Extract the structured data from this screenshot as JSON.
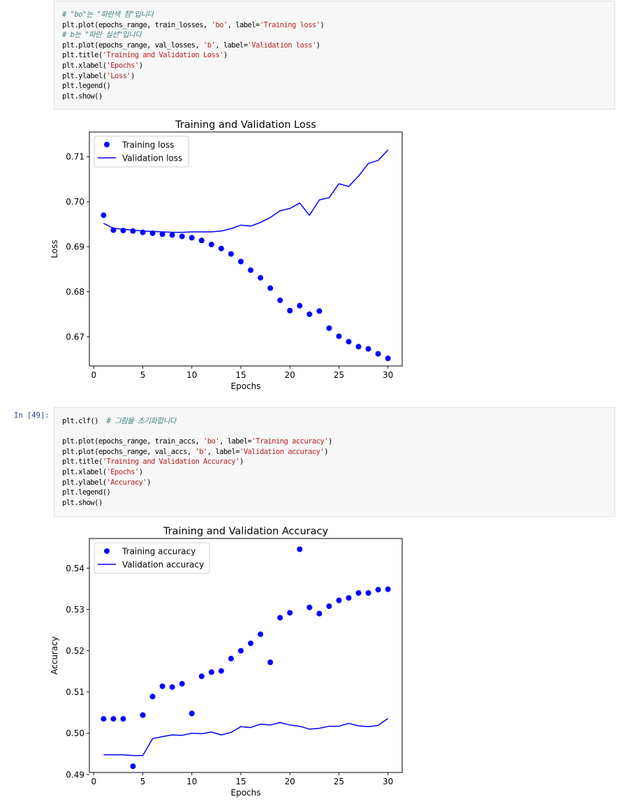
{
  "cells": [
    {
      "prompt": "",
      "code_lines": [
        [
          {
            "t": "# \"bo\"는 \"파란색 점\"입니다",
            "c": "cm"
          }
        ],
        [
          {
            "t": "plt.plot(epochs_range, train_losses, "
          },
          {
            "t": "'bo'",
            "c": "st"
          },
          {
            "t": ", label="
          },
          {
            "t": "'Training loss'",
            "c": "st"
          },
          {
            "t": ")"
          }
        ],
        [
          {
            "t": "# b는 \"파란 실선\"입니다",
            "c": "cm"
          }
        ],
        [
          {
            "t": "plt.plot(epochs_range, val_losses, "
          },
          {
            "t": "'b'",
            "c": "st"
          },
          {
            "t": ", label="
          },
          {
            "t": "'Validation loss'",
            "c": "st"
          },
          {
            "t": ")"
          }
        ],
        [
          {
            "t": "plt.title("
          },
          {
            "t": "'Training and Validation Loss'",
            "c": "st"
          },
          {
            "t": ")"
          }
        ],
        [
          {
            "t": "plt.xlabel("
          },
          {
            "t": "'Epochs'",
            "c": "st"
          },
          {
            "t": ")"
          }
        ],
        [
          {
            "t": "plt.ylabel("
          },
          {
            "t": "'Loss'",
            "c": "st"
          },
          {
            "t": ")"
          }
        ],
        [
          {
            "t": "plt.legend()"
          }
        ],
        [
          {
            "t": "plt.show()"
          }
        ]
      ]
    },
    {
      "prompt": "In [49]:",
      "code_lines": [
        [
          {
            "t": "plt.clf()  "
          },
          {
            "t": "# 그림을 초기화합니다",
            "c": "cm"
          }
        ],
        [
          {
            "t": ""
          }
        ],
        [
          {
            "t": "plt.plot(epochs_range, train_accs, "
          },
          {
            "t": "'bo'",
            "c": "st"
          },
          {
            "t": ", label="
          },
          {
            "t": "'Training accuracy'",
            "c": "st"
          },
          {
            "t": ")"
          }
        ],
        [
          {
            "t": "plt.plot(epochs_range, val_accs, "
          },
          {
            "t": "'b'",
            "c": "st"
          },
          {
            "t": ", label="
          },
          {
            "t": "'Validation accuracy'",
            "c": "st"
          },
          {
            "t": ")"
          }
        ],
        [
          {
            "t": "plt.title("
          },
          {
            "t": "'Training and Validation Accuracy'",
            "c": "st"
          },
          {
            "t": ")"
          }
        ],
        [
          {
            "t": "plt.xlabel("
          },
          {
            "t": "'Epochs'",
            "c": "st"
          },
          {
            "t": ")"
          }
        ],
        [
          {
            "t": "plt.ylabel("
          },
          {
            "t": "'Accuracy'",
            "c": "st"
          },
          {
            "t": ")"
          }
        ],
        [
          {
            "t": "plt.legend()"
          }
        ],
        [
          {
            "t": "plt.show()"
          }
        ]
      ]
    }
  ],
  "colors": {
    "series": "#0000ff",
    "comment": "#408080",
    "string": "#ba2121"
  },
  "chart_data": [
    {
      "type": "line",
      "title": "Training and Validation Loss",
      "xlabel": "Epochs",
      "ylabel": "Loss",
      "xlim": [
        -0.45,
        31.45
      ],
      "ylim": [
        0.6635,
        0.7155
      ],
      "xticks": [
        0,
        5,
        10,
        15,
        20,
        25,
        30
      ],
      "yticks": [
        0.67,
        0.68,
        0.69,
        0.7,
        0.71
      ],
      "ytick_labels": [
        "0.67",
        "0.68",
        "0.69",
        "0.70",
        "0.71"
      ],
      "legend": "top-left",
      "grid": false,
      "x": [
        1,
        2,
        3,
        4,
        5,
        6,
        7,
        8,
        9,
        10,
        11,
        12,
        13,
        14,
        15,
        16,
        17,
        18,
        19,
        20,
        21,
        22,
        23,
        24,
        25,
        26,
        27,
        28,
        29,
        30
      ],
      "series": [
        {
          "name": "Training loss",
          "style": "points",
          "values": [
            0.697,
            0.6937,
            0.6936,
            0.6935,
            0.6932,
            0.693,
            0.6928,
            0.6926,
            0.6923,
            0.692,
            0.6914,
            0.6905,
            0.6896,
            0.6884,
            0.6867,
            0.6848,
            0.6831,
            0.6808,
            0.6781,
            0.6758,
            0.6769,
            0.675,
            0.6757,
            0.6719,
            0.6701,
            0.6689,
            0.6678,
            0.6673,
            0.6662,
            0.6652
          ]
        },
        {
          "name": "Validation loss",
          "style": "line",
          "values": [
            0.6952,
            0.6941,
            0.6939,
            0.6937,
            0.6935,
            0.6934,
            0.6933,
            0.6932,
            0.6932,
            0.6933,
            0.6933,
            0.6933,
            0.6935,
            0.694,
            0.6948,
            0.6946,
            0.6954,
            0.6965,
            0.698,
            0.6985,
            0.6997,
            0.697,
            0.7004,
            0.7009,
            0.704,
            0.7034,
            0.7057,
            0.7085,
            0.7092,
            0.7115
          ]
        }
      ]
    },
    {
      "type": "line",
      "title": "Training and Validation Accuracy",
      "xlabel": "Epochs",
      "ylabel": "Accuracy",
      "xlim": [
        -0.45,
        31.45
      ],
      "ylim": [
        0.4905,
        0.5472
      ],
      "xticks": [
        0,
        5,
        10,
        15,
        20,
        25,
        30
      ],
      "yticks": [
        0.49,
        0.5,
        0.51,
        0.52,
        0.53,
        0.54
      ],
      "ytick_labels": [
        "0.49",
        "0.50",
        "0.51",
        "0.52",
        "0.53",
        "0.54"
      ],
      "legend": "top-left",
      "grid": false,
      "x": [
        1,
        2,
        3,
        4,
        5,
        6,
        7,
        8,
        9,
        10,
        11,
        12,
        13,
        14,
        15,
        16,
        17,
        18,
        19,
        20,
        21,
        22,
        23,
        24,
        25,
        26,
        27,
        28,
        29,
        30
      ],
      "series": [
        {
          "name": "Training accuracy",
          "style": "points",
          "values": [
            0.5035,
            0.5035,
            0.5035,
            0.492,
            0.5044,
            0.5089,
            0.5114,
            0.5112,
            0.512,
            0.5048,
            0.5138,
            0.5148,
            0.5151,
            0.5181,
            0.52,
            0.5218,
            0.524,
            0.5172,
            0.528,
            0.5292,
            0.5446,
            0.5305,
            0.529,
            0.5308,
            0.5322,
            0.5328,
            0.534,
            0.534,
            0.5348,
            0.5349
          ]
        },
        {
          "name": "Validation accuracy",
          "style": "line",
          "values": [
            0.4948,
            0.4948,
            0.4948,
            0.4946,
            0.4946,
            0.4987,
            0.4992,
            0.4996,
            0.4995,
            0.5,
            0.4999,
            0.5003,
            0.4996,
            0.5002,
            0.5016,
            0.5014,
            0.5022,
            0.502,
            0.5026,
            0.502,
            0.5017,
            0.501,
            0.5012,
            0.5017,
            0.5017,
            0.5024,
            0.5018,
            0.5016,
            0.5019,
            0.5036
          ]
        }
      ]
    }
  ]
}
